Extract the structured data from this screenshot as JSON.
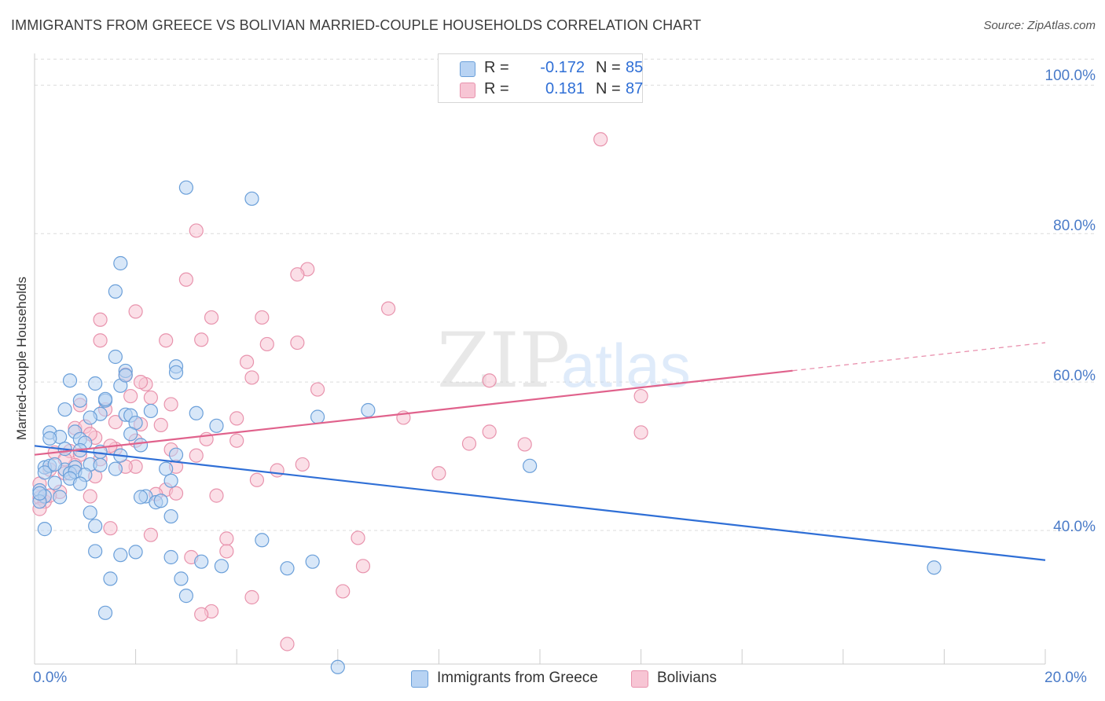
{
  "title": "IMMIGRANTS FROM GREECE VS BOLIVIAN MARRIED-COUPLE HOUSEHOLDS CORRELATION CHART",
  "source": "Source: ZipAtlas.com",
  "watermark": {
    "zip": "ZIP",
    "atlas": "atlas"
  },
  "colors": {
    "blue_fill": "#b8d3f3",
    "blue_stroke": "#6a9fd9",
    "blue_line": "#2f6fd6",
    "pink_fill": "#f7c5d4",
    "pink_stroke": "#e893ad",
    "pink_line": "#e0628c",
    "grid": "#dcdcdc",
    "axis_text": "#4a7bc8"
  },
  "legend_stats": [
    {
      "r_label": "R =",
      "r_value": "-0.172",
      "n_label": "N =",
      "n_value": "85",
      "color": "#b8d3f3"
    },
    {
      "r_label": "R =",
      "r_value": "0.181",
      "n_label": "N =",
      "n_value": "87",
      "color": "#f7c5d4"
    }
  ],
  "legend_bottom": [
    {
      "label": "Immigrants from Greece",
      "color": "#b8d3f3"
    },
    {
      "label": "Bolivians",
      "color": "#f7c5d4"
    }
  ],
  "chart_data": {
    "type": "scatter",
    "ylabel": "Married-couple Households",
    "xlabel": "",
    "x_ticks": [
      "0.0%",
      "20.0%"
    ],
    "y_ticks": [
      "40.0%",
      "60.0%",
      "80.0%",
      "100.0%"
    ],
    "xlim": [
      0,
      20
    ],
    "ylim": [
      22,
      103
    ],
    "grid": true,
    "legend_position": "top-center",
    "series": [
      {
        "name": "Immigrants from Greece",
        "trend": {
          "x": [
            0,
            20
          ],
          "y": [
            51.4,
            36.0
          ],
          "dashed_from": null
        },
        "points": [
          [
            3.0,
            86.2
          ],
          [
            4.3,
            84.7
          ],
          [
            1.7,
            76.0
          ],
          [
            1.6,
            72.2
          ],
          [
            1.6,
            63.4
          ],
          [
            2.8,
            62.1
          ],
          [
            1.8,
            61.5
          ],
          [
            2.8,
            61.3
          ],
          [
            0.7,
            60.2
          ],
          [
            1.2,
            59.8
          ],
          [
            1.7,
            59.5
          ],
          [
            1.8,
            60.9
          ],
          [
            0.9,
            57.5
          ],
          [
            1.4,
            57.5
          ],
          [
            0.6,
            56.3
          ],
          [
            1.3,
            55.7
          ],
          [
            1.8,
            55.6
          ],
          [
            1.9,
            55.5
          ],
          [
            2.3,
            56.1
          ],
          [
            3.2,
            55.8
          ],
          [
            5.6,
            55.3
          ],
          [
            6.6,
            56.2
          ],
          [
            1.1,
            55.2
          ],
          [
            2.0,
            54.5
          ],
          [
            3.6,
            54.1
          ],
          [
            0.3,
            53.2
          ],
          [
            0.8,
            53.3
          ],
          [
            0.5,
            52.6
          ],
          [
            0.9,
            52.3
          ],
          [
            1.0,
            51.8
          ],
          [
            1.9,
            53.0
          ],
          [
            2.1,
            51.5
          ],
          [
            0.6,
            51.0
          ],
          [
            0.9,
            50.8
          ],
          [
            1.3,
            50.6
          ],
          [
            1.7,
            50.1
          ],
          [
            2.8,
            50.2
          ],
          [
            0.2,
            48.5
          ],
          [
            0.3,
            48.7
          ],
          [
            0.6,
            48.2
          ],
          [
            0.8,
            48.5
          ],
          [
            1.1,
            48.9
          ],
          [
            1.3,
            48.8
          ],
          [
            0.2,
            47.8
          ],
          [
            0.7,
            47.7
          ],
          [
            0.8,
            47.9
          ],
          [
            1.0,
            47.5
          ],
          [
            2.6,
            48.3
          ],
          [
            2.7,
            46.7
          ],
          [
            0.4,
            46.4
          ],
          [
            0.1,
            45.4
          ],
          [
            0.2,
            44.6
          ],
          [
            0.1,
            43.9
          ],
          [
            2.2,
            44.6
          ],
          [
            2.4,
            43.8
          ],
          [
            2.5,
            44.0
          ],
          [
            1.1,
            42.4
          ],
          [
            2.7,
            41.9
          ],
          [
            0.2,
            40.2
          ],
          [
            1.2,
            40.6
          ],
          [
            4.5,
            38.7
          ],
          [
            1.2,
            37.2
          ],
          [
            1.7,
            36.7
          ],
          [
            2.0,
            37.1
          ],
          [
            2.7,
            36.4
          ],
          [
            3.3,
            35.8
          ],
          [
            3.7,
            35.2
          ],
          [
            5.0,
            34.9
          ],
          [
            5.5,
            35.8
          ],
          [
            1.5,
            33.5
          ],
          [
            2.9,
            33.5
          ],
          [
            3.0,
            31.2
          ],
          [
            1.4,
            28.9
          ],
          [
            6.0,
            21.6
          ],
          [
            9.8,
            48.7
          ],
          [
            17.8,
            35.0
          ],
          [
            0.3,
            52.4
          ],
          [
            0.7,
            47.0
          ],
          [
            1.6,
            48.3
          ],
          [
            0.1,
            45.0
          ],
          [
            0.4,
            48.9
          ],
          [
            2.1,
            44.5
          ],
          [
            1.4,
            57.7
          ],
          [
            0.5,
            44.5
          ],
          [
            0.9,
            46.3
          ]
        ]
      },
      {
        "name": "Bolivians",
        "trend": {
          "x": [
            0,
            20
          ],
          "y": [
            50.2,
            65.3
          ],
          "dashed_from": 15.0
        },
        "points": [
          [
            11.2,
            92.7
          ],
          [
            3.2,
            80.4
          ],
          [
            5.4,
            75.2
          ],
          [
            5.2,
            74.5
          ],
          [
            3.0,
            73.8
          ],
          [
            7.0,
            69.9
          ],
          [
            1.3,
            68.4
          ],
          [
            2.0,
            69.5
          ],
          [
            3.5,
            68.7
          ],
          [
            4.5,
            68.7
          ],
          [
            1.3,
            65.6
          ],
          [
            2.6,
            65.6
          ],
          [
            3.3,
            65.7
          ],
          [
            4.6,
            65.1
          ],
          [
            5.2,
            65.3
          ],
          [
            4.2,
            62.7
          ],
          [
            1.8,
            61.0
          ],
          [
            4.3,
            60.6
          ],
          [
            9.0,
            60.2
          ],
          [
            2.2,
            59.7
          ],
          [
            5.6,
            59.0
          ],
          [
            1.9,
            58.1
          ],
          [
            2.3,
            57.9
          ],
          [
            0.9,
            56.9
          ],
          [
            1.4,
            56.3
          ],
          [
            2.7,
            57.0
          ],
          [
            7.3,
            55.2
          ],
          [
            4.0,
            55.1
          ],
          [
            1.6,
            54.6
          ],
          [
            2.1,
            54.3
          ],
          [
            0.8,
            53.8
          ],
          [
            1.0,
            54.0
          ],
          [
            3.4,
            52.3
          ],
          [
            2.0,
            52.1
          ],
          [
            1.2,
            52.5
          ],
          [
            4.0,
            52.1
          ],
          [
            9.0,
            53.3
          ],
          [
            12.0,
            53.2
          ],
          [
            8.6,
            51.7
          ],
          [
            9.7,
            51.6
          ],
          [
            1.6,
            51.0
          ],
          [
            2.7,
            50.9
          ],
          [
            0.4,
            50.5
          ],
          [
            0.7,
            50.7
          ],
          [
            0.9,
            50.2
          ],
          [
            1.3,
            49.6
          ],
          [
            2.0,
            48.6
          ],
          [
            1.8,
            48.6
          ],
          [
            2.8,
            48.6
          ],
          [
            5.3,
            48.9
          ],
          [
            4.8,
            48.1
          ],
          [
            0.3,
            48.2
          ],
          [
            0.6,
            47.7
          ],
          [
            1.2,
            47.3
          ],
          [
            4.4,
            46.8
          ],
          [
            8.0,
            47.7
          ],
          [
            2.6,
            45.5
          ],
          [
            2.4,
            44.9
          ],
          [
            2.8,
            45.0
          ],
          [
            3.6,
            44.7
          ],
          [
            1.1,
            44.6
          ],
          [
            0.1,
            44.4
          ],
          [
            0.2,
            43.9
          ],
          [
            0.1,
            42.9
          ],
          [
            1.5,
            40.3
          ],
          [
            2.3,
            39.4
          ],
          [
            3.8,
            38.9
          ],
          [
            6.4,
            39.0
          ],
          [
            3.8,
            37.2
          ],
          [
            3.1,
            36.4
          ],
          [
            6.5,
            35.2
          ],
          [
            6.1,
            31.8
          ],
          [
            4.3,
            31.0
          ],
          [
            3.5,
            29.1
          ],
          [
            3.3,
            28.7
          ],
          [
            5.0,
            24.7
          ],
          [
            0.5,
            45.2
          ],
          [
            0.3,
            44.7
          ],
          [
            0.1,
            46.3
          ],
          [
            1.5,
            51.4
          ],
          [
            2.5,
            54.2
          ],
          [
            3.2,
            50.1
          ],
          [
            0.8,
            48.8
          ],
          [
            12.0,
            58.1
          ],
          [
            1.1,
            53.0
          ],
          [
            0.6,
            49.6
          ],
          [
            2.1,
            60.0
          ]
        ]
      }
    ]
  }
}
